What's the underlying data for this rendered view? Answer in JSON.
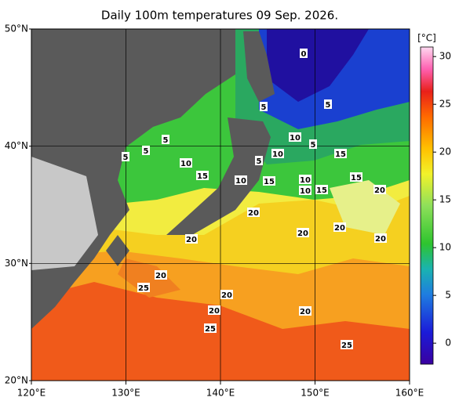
{
  "chart_data": {
    "type": "map",
    "title": "Daily 100m temperatures 09 Sep. 2026.",
    "xlim": [
      120,
      160
    ],
    "ylim": [
      20,
      50
    ],
    "xticks": [
      {
        "value": 120,
        "label": "120°E"
      },
      {
        "value": 130,
        "label": "130°E"
      },
      {
        "value": 140,
        "label": "140°E"
      },
      {
        "value": 150,
        "label": "150°E"
      },
      {
        "value": 160,
        "label": "160°E"
      }
    ],
    "yticks": [
      {
        "value": 20,
        "label": "20°N"
      },
      {
        "value": 30,
        "label": "30°N"
      },
      {
        "value": 40,
        "label": "40°N"
      },
      {
        "value": 50,
        "label": "50°N"
      }
    ],
    "grid": true,
    "colorbar": {
      "label": "[°C]",
      "lim": [
        -2.2,
        31
      ],
      "ticks": [
        0,
        5,
        10,
        15,
        20,
        25,
        30
      ]
    },
    "contour_labels": [
      0,
      5,
      5,
      5,
      5,
      5,
      10,
      5,
      10,
      5,
      15,
      10,
      15,
      10,
      15,
      10,
      15,
      10,
      15,
      20,
      20,
      20,
      20,
      20,
      20,
      20,
      25,
      20,
      20,
      20,
      25,
      25
    ]
  }
}
